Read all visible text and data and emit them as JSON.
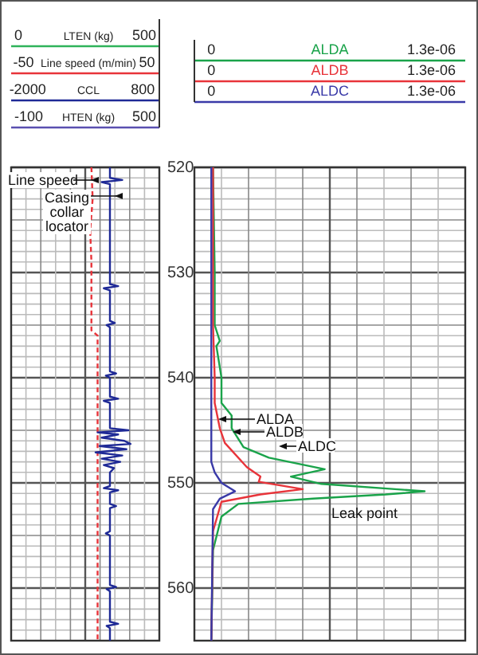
{
  "chart_data": [
    {
      "type": "line",
      "orientation": "horizontal",
      "xlabel": "Line speed (m/min)",
      "xlim": [
        -60,
        60
      ],
      "xticks": [
        -50,
        50
      ],
      "x2label": "CCL",
      "x2lim": [
        -2400,
        1200
      ],
      "x2ticks": [
        -2000,
        800
      ],
      "ylim": [
        565,
        520
      ],
      "yticks": [
        520,
        530,
        540,
        550,
        560
      ],
      "grid": true,
      "series": [
        {
          "color": "#e8343a",
          "line_style": "dashed",
          "x": [
            520,
            523,
            526,
            529,
            532,
            535.5,
            536,
            540,
            545,
            550,
            555,
            560,
            565
          ],
          "values": [
            5,
            6,
            4,
            5,
            5,
            5,
            10,
            10,
            10,
            10,
            10,
            10,
            10
          ]
        },
        {
          "axis": "x2",
          "color": "#1f2a96",
          "line_style": "solid",
          "x": [
            520,
            521,
            521.2,
            521.4,
            521.6,
            531.1,
            531.3,
            531.5,
            531.7,
            534.6,
            534.8,
            535,
            535.2,
            539.4,
            539.6,
            539.8,
            540,
            541.8,
            542,
            542.2,
            542.4,
            544.8,
            545,
            545.2,
            545.4,
            545.7,
            546,
            546.3,
            546.5,
            546.8,
            547.1,
            547.4,
            547.7,
            548,
            548.3,
            548.6,
            549,
            550.3,
            550.5,
            550.7,
            550.9,
            552,
            552.2,
            552.4,
            554.6,
            554.8,
            555,
            559.7,
            559.9,
            560.1,
            560.3,
            563.2,
            563.4,
            563.6,
            563.8,
            565
          ],
          "values": [
            0,
            0,
            300,
            -200,
            0,
            0,
            200,
            -150,
            0,
            0,
            120,
            -80,
            0,
            0,
            150,
            -100,
            0,
            0,
            200,
            -150,
            0,
            0,
            450,
            -300,
            200,
            -200,
            350,
            500,
            -250,
            400,
            -350,
            300,
            -200,
            250,
            -150,
            100,
            0,
            0,
            -150,
            200,
            0,
            0,
            150,
            0,
            0,
            -100,
            0,
            0,
            150,
            -80,
            0,
            0,
            200,
            -80,
            0,
            0
          ]
        }
      ],
      "annotations": [
        "0",
        "LTEN (kg)",
        "500",
        "-100",
        "HTEN (kg)",
        "500",
        "Line speed",
        "Casing collar locator"
      ]
    },
    {
      "type": "line",
      "orientation": "horizontal",
      "xlim": [
        -1e-07,
        1.5e-06
      ],
      "xticks": [
        0,
        {
          "value": 1.3e-06,
          "label": "1.3e-06"
        }
      ],
      "ylim": [
        565,
        520
      ],
      "yticks": [
        520,
        530,
        540,
        550,
        560
      ],
      "tick_labels": "x",
      "grid": true,
      "legend": "top",
      "series": [
        {
          "name": "ALDA",
          "color": "#1aa34a",
          "line_style": "solid",
          "x": [
            520,
            530,
            535,
            536.5,
            537,
            540,
            542.4,
            543.6,
            544.8,
            546.6,
            547.6,
            548.7,
            549.4,
            550.1,
            550.8,
            551.1,
            551.5,
            552,
            553.2,
            556.4,
            565
          ],
          "values": [
            1e-08,
            2e-08,
            2e-08,
            5e-08,
            3e-08,
            6e-08,
            6e-08,
            1.2e-07,
            1.2e-07,
            1.9e-07,
            3.4e-07,
            6.7e-07,
            4.7e-07,
            6.5e-07,
            1.26e-06,
            1.03e-06,
            6e-07,
            1.6e-07,
            6e-08,
            1e-08,
            0
          ]
        },
        {
          "name": "ALDB",
          "color": "#e8343a",
          "line_style": "solid",
          "x": [
            520,
            535,
            540,
            542.4,
            544.8,
            546.2,
            548.5,
            549.4,
            549.9,
            550.6,
            551.1,
            551.8,
            554.6,
            565
          ],
          "values": [
            1e-08,
            1e-08,
            2e-08,
            2e-08,
            5e-08,
            8e-08,
            2.1e-07,
            2.9e-07,
            2.8e-07,
            5.4e-07,
            2.9e-07,
            6e-08,
            1e-08,
            0
          ]
        },
        {
          "name": "ALDC",
          "color": "#3a3aa8",
          "line_style": "solid",
          "x": [
            520,
            548,
            549,
            550,
            550.8,
            551.5,
            552.5,
            565
          ],
          "values": [
            0,
            0,
            2e-08,
            6e-08,
            1.4e-07,
            5e-08,
            1e-08,
            0
          ]
        }
      ],
      "annotations": [
        "ALDA",
        "ALDB",
        "ALDC",
        "Leak point"
      ]
    }
  ]
}
